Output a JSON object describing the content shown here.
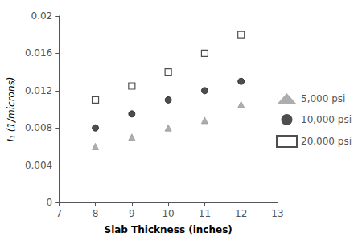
{
  "chart_data": {
    "type": "scatter",
    "x": [
      8,
      9,
      10,
      11,
      12
    ],
    "series": [
      {
        "name": "5,000 psi",
        "color": "#999999",
        "marker": "triangle",
        "values": [
          0.006,
          0.007,
          0.008,
          0.0088,
          0.0105
        ]
      },
      {
        "name": "10,000 psi",
        "color": "#222222",
        "marker": "circle",
        "values": [
          0.008,
          0.0095,
          0.011,
          0.012,
          0.013
        ]
      },
      {
        "name": "20,000 psi",
        "color": "#222222",
        "marker": "open-square",
        "values": [
          0.011,
          0.0125,
          0.014,
          0.016,
          0.018
        ]
      }
    ],
    "xlabel": "Slab Thickness (inches)",
    "ylabel": "I₁ (1/microns)",
    "xlim": [
      7,
      13
    ],
    "ylim": [
      0,
      0.02
    ],
    "xticks": [
      7,
      8,
      9,
      10,
      11,
      12,
      13
    ],
    "yticks": [
      0,
      0.004,
      0.008,
      0.012,
      0.016,
      0.02
    ],
    "legend": "right",
    "grid": false
  }
}
